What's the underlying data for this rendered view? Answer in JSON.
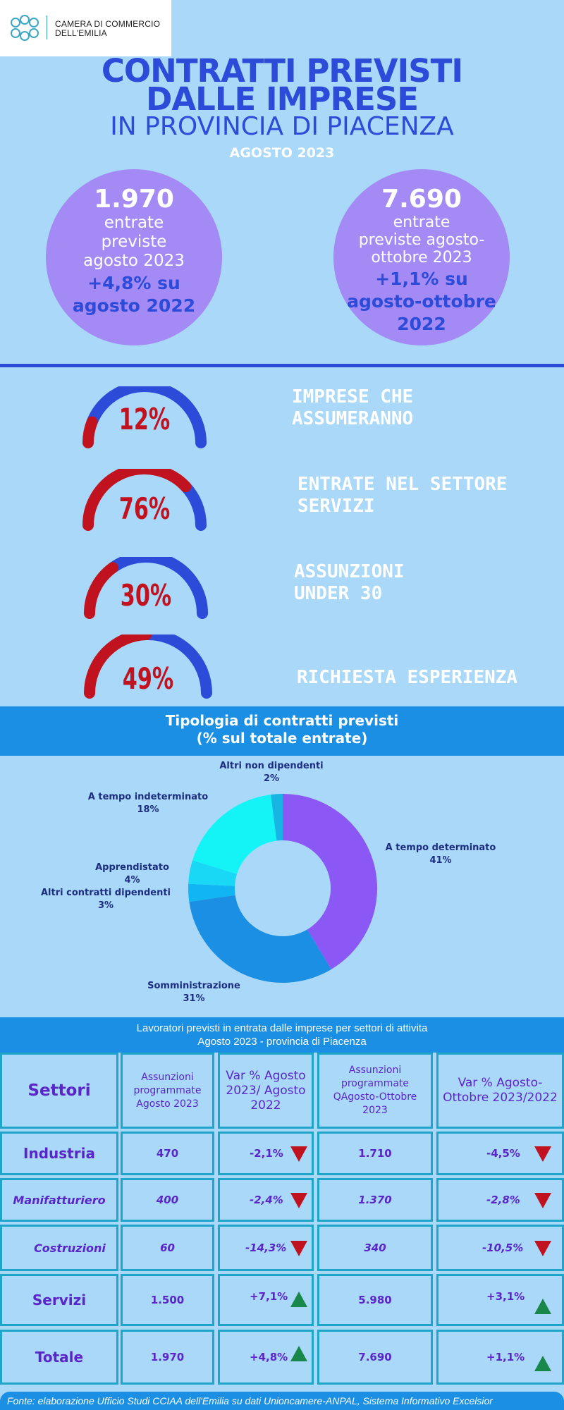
{
  "logo": {
    "line1": "CAMERA DI COMMERCIO",
    "line2": "DELL'EMILIA"
  },
  "title": {
    "line1": "CONTRATTI PREVISTI",
    "line2": "DALLE IMPRESE",
    "line3": "IN PROVINCIA DI PIACENZA",
    "period": "AGOSTO 2023"
  },
  "circles": [
    {
      "value": "1.970",
      "label": [
        "entrate",
        "previste",
        "agosto 2023"
      ],
      "variation": [
        "+4,8% su",
        "agosto 2022"
      ]
    },
    {
      "value": "7.690",
      "label": [
        "entrate",
        "previste agosto-",
        "ottobre 2023"
      ],
      "variation": [
        "+1,1% su",
        "agosto-ottobre",
        "2022"
      ]
    }
  ],
  "gauges": [
    {
      "pct_text": "12%",
      "pct": 12,
      "label": [
        "IMPRESE CHE",
        "ASSUMERANNO"
      ]
    },
    {
      "pct_text": "76%",
      "pct": 76,
      "label": [
        "ENTRATE NEL SETTORE",
        "SERVIZI"
      ]
    },
    {
      "pct_text": "30%",
      "pct": 30,
      "label": [
        "ASSUNZIONI",
        "UNDER 30"
      ]
    },
    {
      "pct_text": "49%",
      "pct": 49,
      "label": [
        "RICHIESTA ESPERIENZA"
      ]
    }
  ],
  "contracts": {
    "title": "Tipologia di contratti previsti",
    "subtitle": "(% sul totale entrate)"
  },
  "chart_data": {
    "type": "pie",
    "title": "Tipologia di contratti previsti",
    "subtitle": "(% sul totale entrate)",
    "donut": true,
    "slices": [
      {
        "label": "A tempo determinato",
        "value": 41,
        "value_text": "41%",
        "color": "#8b57f5"
      },
      {
        "label": "Somministrazione",
        "value": 31,
        "value_text": "31%",
        "color": "#1a8fe3"
      },
      {
        "label": "Altri contratti dipendenti",
        "value": 3,
        "value_text": "3%",
        "color": "#10b5f2"
      },
      {
        "label": "Apprendistato",
        "value": 4,
        "value_text": "4%",
        "color": "#18d8f5"
      },
      {
        "label": "A tempo indeterminato",
        "value": 18,
        "value_text": "18%",
        "color": "#14f4f7"
      },
      {
        "label": "Altri non dipendenti",
        "value": 2,
        "value_text": "2%",
        "color": "#16b5e3"
      }
    ]
  },
  "table": {
    "title_line1": "Lavoratori previsti in entrata dalle imprese per settori di attivita",
    "title_line2": "Agosto 2023 - provincia di Piacenza",
    "headers": [
      "Settori",
      "Assunzioni programmate Agosto 2023",
      "Var % Agosto 2023/ Agosto 2022",
      "Assunzioni programmate QAgosto-Ottobre 2023",
      "Var % Agosto-Ottobre 2023/2022"
    ],
    "rows": [
      {
        "label": "Industria",
        "a": "470",
        "v1": "-2,1%",
        "d1": "down",
        "b": "1.710",
        "v2": "-4,5%",
        "d2": "down"
      },
      {
        "label": "Manifatturiero",
        "a": "400",
        "v1": "-2,4%",
        "d1": "down",
        "b": "1.370",
        "v2": "-2,8%",
        "d2": "down"
      },
      {
        "label": "Costruzioni",
        "a": "60",
        "v1": "-14,3%",
        "d1": "down",
        "b": "340",
        "v2": "-10,5%",
        "d2": "down"
      },
      {
        "label": "Servizi",
        "a": "1.500",
        "v1": "+7,1%",
        "d1": "up",
        "b": "5.980",
        "v2": "+3,1%",
        "d2": "up"
      },
      {
        "label": "Totale",
        "a": "1.970",
        "v1": "+4,8%",
        "d1": "up",
        "b": "7.690",
        "v2": "+1,1%",
        "d2": "up"
      }
    ]
  },
  "colors": {
    "gauge_fill": "#c1121f",
    "gauge_rest": "#2c4bd9",
    "down": "#c1121f",
    "up": "#17874a"
  },
  "footer": "Fonte: elaborazione Ufficio Studi CCIAA dell'Emilia su dati Unioncamere-ANPAL, Sistema Informativo Excelsior"
}
